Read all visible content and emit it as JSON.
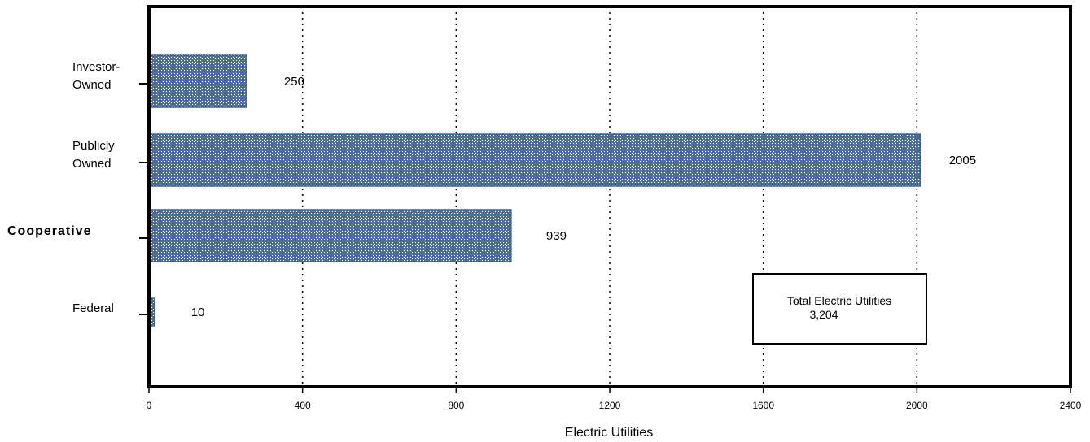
{
  "chart_data": {
    "type": "bar",
    "orientation": "horizontal",
    "categories": [
      "Investor-\nOwned",
      "Publicly\nOwned",
      "Cooperative",
      "Federal"
    ],
    "values": [
      250,
      2005,
      939,
      10
    ],
    "xlabel": "Electric Utilities",
    "xlim": [
      0,
      2400
    ],
    "xticks": [
      0,
      400,
      800,
      1200,
      1600,
      2000,
      2400
    ],
    "grid": "vertical dotted",
    "bar_color": "#4a6f9c",
    "annotation": {
      "line1": "Total Electric Utilities",
      "line2": "3,204"
    }
  }
}
